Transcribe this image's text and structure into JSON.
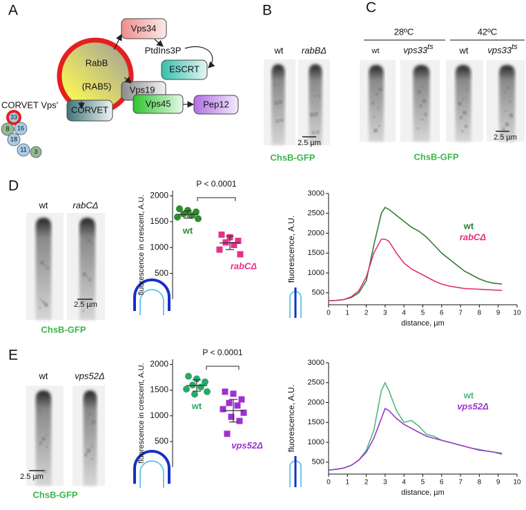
{
  "panels": {
    "A": {
      "label": "A",
      "corvet_label": "CORVET Vps'",
      "corvet_subunits": [
        "33",
        "8",
        "16",
        "18",
        "11",
        "3"
      ],
      "rab": "RabB",
      "rab_alias": "(RAB5)",
      "nodes": {
        "vps34": "Vps34",
        "ptdins3p": "PtdIns3P",
        "escrt": "ESCRT",
        "vps19": "Vps19",
        "vps45": "Vps45",
        "pep12": "Pep12",
        "corvet": "CORVET"
      }
    },
    "B": {
      "label": "B",
      "images": [
        "wt",
        "rabBΔ"
      ],
      "scale_bar": "2.5 µm",
      "caption": "ChsB-GFP"
    },
    "C": {
      "label": "C",
      "temperatures": [
        "28ºC",
        "42ºC"
      ],
      "images": [
        {
          "name": "wt"
        },
        {
          "name": "vps33",
          "sup": "ts"
        },
        {
          "name": "wt"
        },
        {
          "name": "vps33",
          "sup": "ts"
        }
      ],
      "scale_bar": "2.5 µm",
      "caption": "ChsB-GFP"
    },
    "D": {
      "label": "D",
      "images": [
        "wt",
        "rabCΔ"
      ],
      "scale_bar": "2.5 µm",
      "caption": "ChsB-GFP"
    },
    "E": {
      "label": "E",
      "images": [
        "wt",
        "vps52Δ"
      ],
      "scale_bar": "2.5 µm",
      "caption": "ChsB-GFP"
    }
  },
  "chart_data": [
    {
      "type": "dot",
      "y_label": "fluorescence in crescent, A.U.",
      "annotation": "P < 0.0001",
      "ylim": [
        0,
        2100
      ],
      "yticks": [
        500,
        1000,
        1500,
        2000
      ],
      "series": [
        {
          "name": "wt",
          "color": "#2e8b2e",
          "marker": "circle",
          "values": [
            1750,
            1720,
            1690,
            1650,
            1620,
            1590,
            1560
          ],
          "mean": 1640,
          "sd": 70
        },
        {
          "name": "rabCΔ",
          "color": "#e8308a",
          "marker": "square",
          "values": [
            1250,
            1200,
            1130,
            1100,
            1050,
            960,
            870
          ],
          "mean": 1090,
          "sd": 130
        }
      ]
    },
    {
      "type": "line",
      "y_label": "fluorescence, A.U.",
      "x_label": "distance, µm",
      "legend": "upper right",
      "xlim": [
        0,
        10
      ],
      "xticks": [
        0,
        1,
        2,
        3,
        4,
        5,
        6,
        7,
        8,
        9,
        10
      ],
      "ylim": [
        200,
        3000
      ],
      "yticks": [
        500,
        1000,
        1500,
        2000,
        2500,
        3000
      ],
      "x": [
        0,
        0.4,
        0.8,
        1.2,
        1.6,
        2,
        2.4,
        2.8,
        3,
        3.2,
        3.6,
        4,
        4.4,
        4.8,
        5.2,
        5.6,
        6,
        6.4,
        6.8,
        7.2,
        7.6,
        8,
        8.4,
        8.8,
        9.2
      ],
      "series": [
        {
          "name": "wt",
          "color": "#2e7d32",
          "values": [
            300,
            310,
            330,
            380,
            500,
            800,
            1700,
            2500,
            2650,
            2600,
            2450,
            2300,
            2150,
            2050,
            1900,
            1700,
            1500,
            1350,
            1200,
            1050,
            950,
            850,
            780,
            740,
            720
          ]
        },
        {
          "name": "rabCΔ",
          "color": "#e0307a",
          "values": [
            300,
            310,
            330,
            400,
            550,
            900,
            1500,
            1850,
            1850,
            1800,
            1500,
            1250,
            1100,
            1000,
            900,
            800,
            720,
            670,
            640,
            610,
            600,
            590,
            580,
            570,
            560
          ]
        }
      ]
    },
    {
      "type": "dot",
      "y_label": "fluorescence in crescent, A.U.",
      "annotation": "P < 0.0001",
      "ylim": [
        0,
        2100
      ],
      "yticks": [
        500,
        1000,
        1500,
        2000
      ],
      "series": [
        {
          "name": "wt",
          "color": "#2aa86a",
          "marker": "circle",
          "values": [
            1770,
            1720,
            1660,
            1600,
            1560,
            1520,
            1470,
            1420
          ],
          "mean": 1590,
          "sd": 110
        },
        {
          "name": "vps52Δ",
          "color": "#a030d0",
          "marker": "square",
          "values": [
            1470,
            1430,
            1320,
            1250,
            1200,
            1130,
            1060,
            980,
            900,
            650
          ],
          "mean": 1100,
          "sd": 220
        }
      ]
    },
    {
      "type": "line",
      "y_label": "fluorescence, A.U.",
      "x_label": "distance, µm",
      "legend": "upper right",
      "xlim": [
        0,
        10
      ],
      "xticks": [
        0,
        1,
        2,
        3,
        4,
        5,
        6,
        7,
        8,
        9,
        10
      ],
      "ylim": [
        200,
        3000
      ],
      "yticks": [
        500,
        1000,
        1500,
        2000,
        2500,
        3000
      ],
      "x": [
        0,
        0.4,
        0.8,
        1.2,
        1.6,
        2,
        2.4,
        2.8,
        3,
        3.2,
        3.6,
        4,
        4.4,
        4.8,
        5.2,
        5.6,
        6,
        6.4,
        6.8,
        7.2,
        7.6,
        8,
        8.4,
        8.8,
        9.2
      ],
      "series": [
        {
          "name": "wt",
          "color": "#4fb87e",
          "values": [
            300,
            320,
            350,
            420,
            550,
            800,
            1300,
            2300,
            2500,
            2300,
            1800,
            1500,
            1550,
            1400,
            1200,
            1150,
            1050,
            1000,
            950,
            900,
            850,
            820,
            780,
            750,
            730
          ]
        },
        {
          "name": "vps52Δ",
          "color": "#9a35c8",
          "values": [
            300,
            320,
            350,
            420,
            550,
            750,
            1100,
            1600,
            1850,
            1800,
            1600,
            1450,
            1350,
            1250,
            1150,
            1100,
            1050,
            1000,
            950,
            900,
            850,
            800,
            780,
            750,
            700
          ]
        }
      ]
    }
  ]
}
